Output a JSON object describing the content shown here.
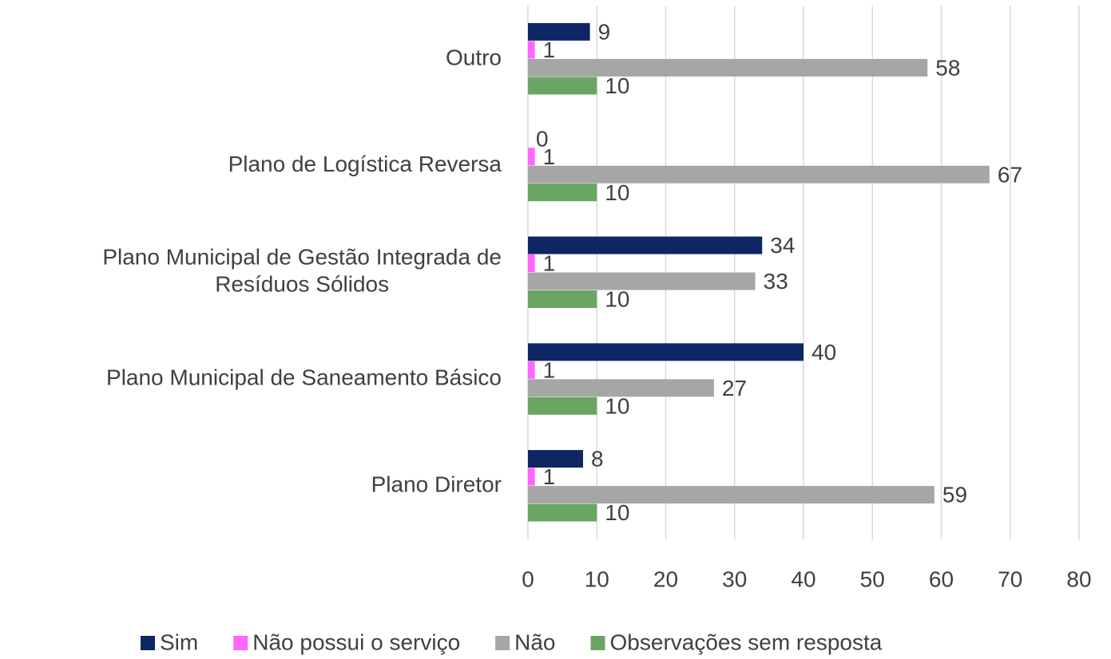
{
  "chart_data": {
    "type": "barh",
    "categories": [
      "Plano Diretor",
      "Plano Municipal de Saneamento Básico",
      "Plano Municipal de Gestão Integrada de Resíduos Sólidos",
      "Plano de Logística Reversa",
      "Outro"
    ],
    "series": [
      {
        "name": "Sim",
        "color": "#0e2663",
        "values": [
          8,
          40,
          34,
          0,
          9
        ]
      },
      {
        "name": "Não possui o serviço",
        "color": "#ff66ff",
        "values": [
          1,
          1,
          1,
          1,
          1
        ]
      },
      {
        "name": "Não",
        "color": "#a6a6a6",
        "values": [
          59,
          27,
          33,
          67,
          58
        ]
      },
      {
        "name": "Observações sem resposta",
        "color": "#6aa663",
        "values": [
          10,
          10,
          10,
          10,
          10
        ]
      }
    ],
    "xlim": [
      0,
      80
    ],
    "xticks": [
      0,
      10,
      20,
      30,
      40,
      50,
      60,
      70,
      80
    ],
    "grid": true,
    "legend": "bottom"
  }
}
